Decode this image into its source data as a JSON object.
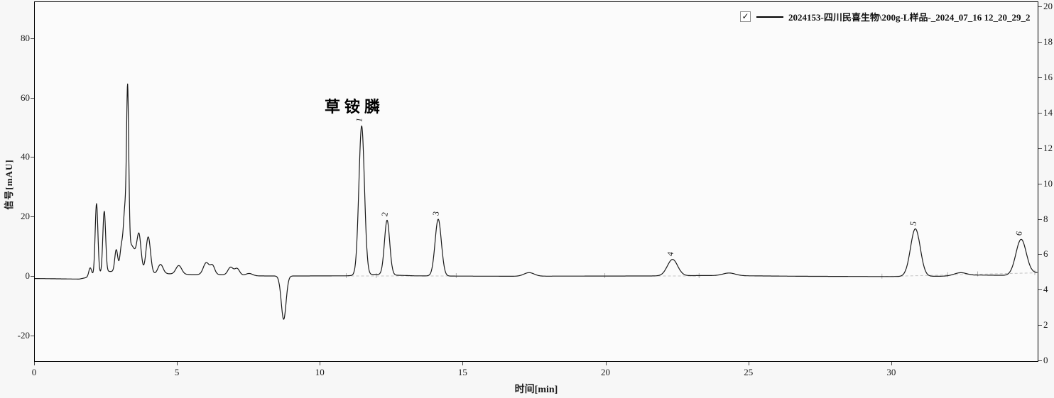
{
  "legend": {
    "checkbox_checked": true,
    "check_glyph": "✓",
    "label": "2024153-四川民喜生物\\200g-L样品-_2024_07_16 12_20_29_2"
  },
  "annotation": {
    "text": "草铵膦"
  },
  "chart_data": {
    "type": "line",
    "title": "",
    "xlabel": "时间[min]",
    "ylabel_left": "信号[mAU]",
    "series_name": "2024153-四川民喜生物\\200g-L样品-_2024_07_16 12_20_29_2",
    "line_color": "#1a1a1a",
    "grid": false,
    "legend_position": "top-right",
    "x_range": [
      0,
      35.1
    ],
    "x_ticks": [
      0,
      5,
      10,
      15,
      20,
      25,
      30
    ],
    "y_left_range": [
      -28.4,
      92.4
    ],
    "y_left_ticks": [
      -20,
      0,
      20,
      40,
      60,
      80
    ],
    "y_right_range": [
      0,
      20.3
    ],
    "y_right_ticks": [
      0,
      2,
      4,
      6,
      8,
      10,
      12,
      14,
      16,
      18,
      20
    ],
    "numbered_peaks": [
      {
        "label": "1",
        "time_min": 11.44,
        "height_mAU": 50.3,
        "compound": "草铵膦"
      },
      {
        "label": "2",
        "time_min": 12.33,
        "height_mAU": 18.5
      },
      {
        "label": "3",
        "time_min": 14.12,
        "height_mAU": 19.2
      },
      {
        "label": "4",
        "time_min": 22.32,
        "height_mAU": 5.6
      },
      {
        "label": "5",
        "time_min": 30.82,
        "height_mAU": 16.1
      },
      {
        "label": "6",
        "time_min": 34.52,
        "height_mAU": 11.7
      }
    ],
    "negative_dip": {
      "time_min": 8.71,
      "depth_mAU": -14.5
    },
    "peaks_model": [
      [
        1.94,
        3.0,
        0.05
      ],
      [
        2.16,
        24.0,
        0.048
      ],
      [
        2.43,
        20.5,
        0.048
      ],
      [
        2.85,
        7.0,
        0.05
      ],
      [
        3.03,
        6.0,
        0.05
      ],
      [
        3.15,
        15.0,
        0.05
      ],
      [
        3.25,
        53.0,
        0.038
      ],
      [
        3.35,
        9.5,
        0.2
      ],
      [
        3.65,
        10.5,
        0.07
      ],
      [
        3.97,
        12.5,
        0.08
      ],
      [
        4.4,
        3.2,
        0.09
      ],
      [
        5.04,
        2.9,
        0.1
      ],
      [
        6.0,
        4.0,
        0.1
      ],
      [
        6.22,
        3.0,
        0.08
      ],
      [
        6.85,
        2.6,
        0.09
      ],
      [
        7.08,
        2.3,
        0.09
      ],
      [
        7.5,
        0.8,
        0.12
      ],
      [
        8.71,
        -14.6,
        0.085
      ],
      [
        11.44,
        50.2,
        0.098
      ],
      [
        12.33,
        18.4,
        0.092
      ],
      [
        14.12,
        19.1,
        0.11
      ],
      [
        17.3,
        1.2,
        0.18
      ],
      [
        22.32,
        5.5,
        0.18
      ],
      [
        24.3,
        0.9,
        0.22
      ],
      [
        30.82,
        16.0,
        0.17
      ],
      [
        32.4,
        1.0,
        0.22
      ],
      [
        34.52,
        11.7,
        0.18
      ]
    ],
    "baseline_points": [
      [
        0,
        -0.6
      ],
      [
        1.55,
        -0.8
      ],
      [
        2.05,
        0.2
      ],
      [
        2.5,
        1.8
      ],
      [
        3.1,
        1.6
      ],
      [
        3.5,
        1.2
      ],
      [
        3.85,
        0.8
      ],
      [
        4.6,
        1.0
      ],
      [
        5.5,
        0.7
      ],
      [
        6.5,
        0.7
      ],
      [
        7.4,
        0.3
      ],
      [
        8.2,
        0.25
      ],
      [
        9.3,
        0.25
      ],
      [
        10.9,
        0.3
      ],
      [
        11.9,
        0.75
      ],
      [
        13.3,
        0.3
      ],
      [
        14.9,
        0.2
      ],
      [
        16.8,
        0.15
      ],
      [
        18.5,
        0.2
      ],
      [
        21.5,
        0.25
      ],
      [
        23.4,
        0.4
      ],
      [
        25.0,
        0.3
      ],
      [
        26.8,
        0.15
      ],
      [
        29.7,
        0.05
      ],
      [
        31.7,
        0.15
      ],
      [
        33.1,
        0.55
      ],
      [
        34.0,
        0.45
      ],
      [
        35.1,
        1.35
      ]
    ],
    "integration_baselines": [
      {
        "t1": 10.9,
        "v1": 0.25,
        "t2": 14.8,
        "v2": 0.25,
        "end_ticks": [
          10.9,
          11.95,
          14.75
        ]
      },
      {
        "t1": 19.9,
        "v1": 0.25,
        "t2": 23.3,
        "v2": 0.25,
        "end_ticks": [
          19.95,
          23.25
        ]
      },
      {
        "t1": 29.6,
        "v1": 0.05,
        "t2": 35.05,
        "v2": 1.3,
        "end_ticks": [
          29.65,
          31.95,
          33.0,
          35.0
        ]
      }
    ]
  }
}
